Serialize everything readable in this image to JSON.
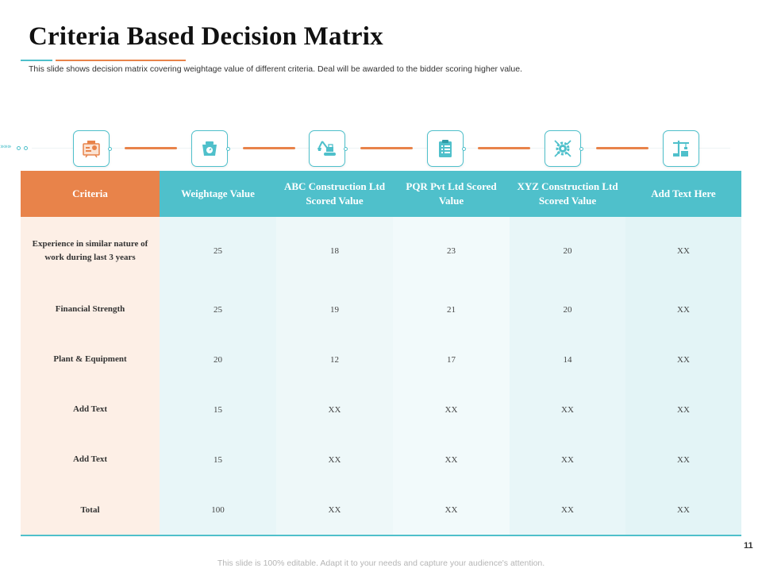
{
  "title": "Criteria Based Decision Matrix",
  "subtitle": "This slide shows decision matrix covering weightage value of different criteria. Deal will be awarded to the bidder scoring higher value.",
  "track": {
    "chevrons": "»»»"
  },
  "icons": [
    "presentation-board-icon",
    "weighing-scale-icon",
    "excavator-icon",
    "clipboard-checklist-icon",
    "gear-tools-icon",
    "tower-crane-icon"
  ],
  "colors": {
    "accent_teal": "#4fc0cb",
    "accent_orange": "#e8834a",
    "criteria_cell_bg": "#fdefe6"
  },
  "table": {
    "headers": [
      "Criteria",
      "Weightage Value",
      "ABC Construction Ltd Scored Value",
      "PQR Pvt Ltd Scored Value",
      "XYZ Construction Ltd Scored Value",
      "Add Text Here"
    ],
    "rows": [
      {
        "criteria": "Experience in similar nature of work during last 3 years",
        "values": [
          "25",
          "18",
          "23",
          "20",
          "XX"
        ]
      },
      {
        "criteria": "Financial Strength",
        "values": [
          "25",
          "19",
          "21",
          "20",
          "XX"
        ]
      },
      {
        "criteria": "Plant & Equipment",
        "values": [
          "20",
          "12",
          "17",
          "14",
          "XX"
        ]
      },
      {
        "criteria": "Add Text",
        "values": [
          "15",
          "XX",
          "XX",
          "XX",
          "XX"
        ]
      },
      {
        "criteria": "Add Text",
        "values": [
          "15",
          "XX",
          "XX",
          "XX",
          "XX"
        ]
      },
      {
        "criteria": "Total",
        "values": [
          "100",
          "XX",
          "XX",
          "XX",
          "XX"
        ]
      }
    ]
  },
  "page_number": "11",
  "footer": "This slide is 100% editable. Adapt it to your needs and capture your audience's attention."
}
